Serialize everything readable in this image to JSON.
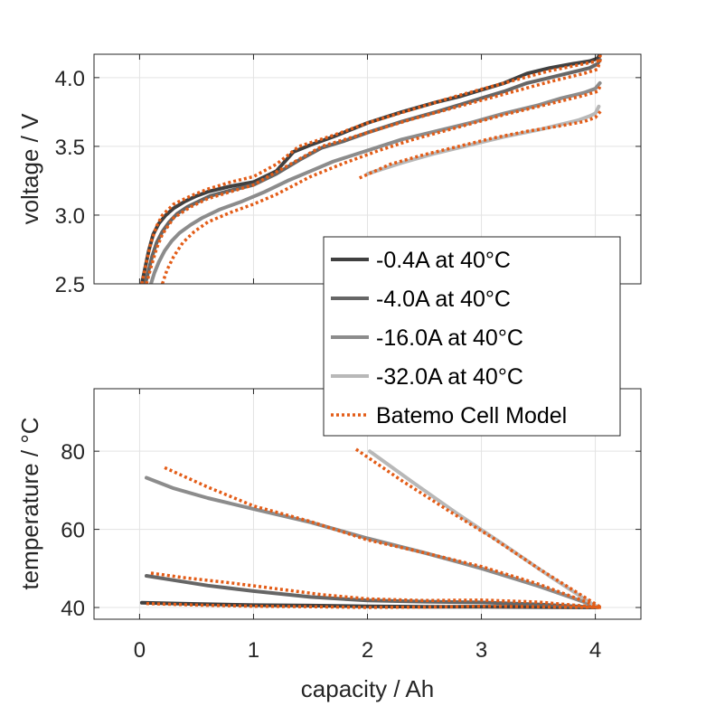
{
  "chart_data": [
    {
      "type": "line",
      "ylabel": "voltage / V",
      "xlabel": "",
      "xlim": [
        -0.4,
        4.4
      ],
      "ylim": [
        2.5,
        4.17
      ],
      "xticks": [
        0,
        1,
        2,
        3,
        4
      ],
      "yticks": [
        "2.5",
        "3.0",
        "3.5",
        "4.0"
      ],
      "grid": true,
      "series": [
        {
          "name": "-0.4A at 40°C",
          "color": "#404040",
          "style": "solid",
          "x": [
            0.02,
            0.05,
            0.08,
            0.12,
            0.17,
            0.23,
            0.3,
            0.4,
            0.5,
            0.6,
            0.8,
            1.0,
            1.2,
            1.35,
            1.5,
            1.7,
            2.0,
            2.3,
            2.6,
            2.8,
            3.0,
            3.2,
            3.4,
            3.6,
            3.8,
            3.95,
            4.02,
            4.04
          ],
          "y": [
            2.5,
            2.62,
            2.74,
            2.86,
            2.94,
            3.0,
            3.05,
            3.1,
            3.14,
            3.17,
            3.21,
            3.24,
            3.32,
            3.46,
            3.51,
            3.57,
            3.67,
            3.75,
            3.82,
            3.86,
            3.91,
            3.96,
            4.03,
            4.07,
            4.1,
            4.12,
            4.14,
            4.17
          ]
        },
        {
          "name": "-4.0A at 40°C",
          "color": "#666666",
          "style": "solid",
          "x": [
            0.05,
            0.08,
            0.11,
            0.15,
            0.2,
            0.26,
            0.33,
            0.42,
            0.52,
            0.62,
            0.8,
            1.0,
            1.2,
            1.4,
            1.6,
            1.8,
            2.0,
            2.3,
            2.6,
            2.8,
            3.0,
            3.2,
            3.4,
            3.6,
            3.8,
            3.95,
            4.02,
            4.04
          ],
          "y": [
            2.5,
            2.6,
            2.7,
            2.8,
            2.88,
            2.95,
            3.01,
            3.06,
            3.1,
            3.14,
            3.18,
            3.22,
            3.3,
            3.4,
            3.49,
            3.54,
            3.6,
            3.68,
            3.75,
            3.8,
            3.85,
            3.9,
            3.96,
            4.0,
            4.04,
            4.07,
            4.1,
            4.13
          ]
        },
        {
          "name": "-16.0A at 40°C",
          "color": "#8c8c8c",
          "style": "solid",
          "x": [
            0.1,
            0.13,
            0.17,
            0.22,
            0.28,
            0.35,
            0.45,
            0.55,
            0.7,
            0.9,
            1.1,
            1.3,
            1.5,
            1.7,
            2.0,
            2.3,
            2.6,
            2.9,
            3.2,
            3.5,
            3.7,
            3.9,
            4.0,
            4.04
          ],
          "y": [
            2.5,
            2.58,
            2.66,
            2.74,
            2.81,
            2.87,
            2.93,
            2.98,
            3.04,
            3.1,
            3.17,
            3.25,
            3.32,
            3.39,
            3.47,
            3.55,
            3.61,
            3.67,
            3.74,
            3.8,
            3.85,
            3.89,
            3.92,
            3.96
          ]
        },
        {
          "name": "-32.0A at 40°C",
          "color": "#b8b8b8",
          "style": "solid",
          "x": [
            2.0,
            2.3,
            2.6,
            2.9,
            3.2,
            3.5,
            3.7,
            3.85,
            3.95,
            4.0,
            4.03
          ],
          "y": [
            3.3,
            3.38,
            3.45,
            3.51,
            3.57,
            3.62,
            3.66,
            3.69,
            3.72,
            3.74,
            3.79
          ]
        },
        {
          "name": "Batemo Cell Model",
          "color": "#e35c17",
          "style": "dotted",
          "x": [
            0.02,
            0.06,
            0.1,
            0.15,
            0.2,
            0.3,
            0.45,
            0.6,
            0.8,
            1.0,
            1.2,
            1.4,
            1.7,
            2.0,
            2.4,
            2.8,
            3.2,
            3.6,
            3.9,
            4.02,
            4.05
          ],
          "y": [
            2.5,
            2.66,
            2.8,
            2.92,
            3.0,
            3.08,
            3.14,
            3.19,
            3.24,
            3.28,
            3.37,
            3.5,
            3.58,
            3.67,
            3.77,
            3.87,
            3.96,
            4.05,
            4.1,
            4.12,
            4.17
          ]
        },
        {
          "name": "",
          "color": "#e35c17",
          "style": "dotted",
          "x": [
            0.06,
            0.1,
            0.15,
            0.2,
            0.3,
            0.45,
            0.6,
            0.8,
            1.0,
            1.3,
            1.6,
            2.0,
            2.4,
            2.8,
            3.2,
            3.6,
            3.9,
            4.02,
            4.05
          ],
          "y": [
            2.5,
            2.62,
            2.76,
            2.86,
            2.98,
            3.06,
            3.12,
            3.17,
            3.22,
            3.36,
            3.5,
            3.6,
            3.7,
            3.79,
            3.88,
            3.97,
            4.03,
            4.06,
            4.15
          ]
        },
        {
          "name": "",
          "color": "#e35c17",
          "style": "dotted",
          "x": [
            0.2,
            0.24,
            0.3,
            0.38,
            0.48,
            0.6,
            0.8,
            1.0,
            1.2,
            1.5,
            1.8,
            2.1,
            2.4,
            2.8,
            3.2,
            3.6,
            3.9,
            4.02,
            4.05
          ],
          "y": [
            2.5,
            2.6,
            2.7,
            2.8,
            2.88,
            2.95,
            3.02,
            3.08,
            3.15,
            3.28,
            3.38,
            3.47,
            3.55,
            3.64,
            3.73,
            3.81,
            3.87,
            3.9,
            3.95
          ]
        },
        {
          "name": "",
          "color": "#e35c17",
          "style": "dotted",
          "x": [
            1.93,
            2.2,
            2.5,
            2.8,
            3.1,
            3.4,
            3.7,
            3.9,
            4.0,
            4.05
          ],
          "y": [
            3.27,
            3.37,
            3.44,
            3.5,
            3.56,
            3.61,
            3.65,
            3.68,
            3.71,
            3.76
          ]
        }
      ]
    },
    {
      "type": "line",
      "ylabel": "temperature / °C",
      "xlabel": "capacity / Ah",
      "xlim": [
        -0.4,
        4.4
      ],
      "ylim": [
        37,
        96
      ],
      "xticks": [
        "0",
        "1",
        "2",
        "3",
        "4"
      ],
      "yticks": [
        "40",
        "60",
        "80"
      ],
      "grid": true,
      "series": [
        {
          "name": "-0.4A at 40°C",
          "color": "#404040",
          "style": "solid",
          "x": [
            0.02,
            0.5,
            1.0,
            1.5,
            2.0,
            2.5,
            3.0,
            3.5,
            4.02
          ],
          "y": [
            41.2,
            40.9,
            40.6,
            40.5,
            40.3,
            40.2,
            40.2,
            40.1,
            40.0
          ]
        },
        {
          "name": "-4.0A at 40°C",
          "color": "#666666",
          "style": "solid",
          "x": [
            0.06,
            0.3,
            0.6,
            1.0,
            1.5,
            2.0,
            2.5,
            3.0,
            3.5,
            4.02
          ],
          "y": [
            48.1,
            47.0,
            45.6,
            44.2,
            42.7,
            41.8,
            41.5,
            41.3,
            40.8,
            40.0
          ]
        },
        {
          "name": "-16.0A at 40°C",
          "color": "#8c8c8c",
          "style": "solid",
          "x": [
            0.06,
            0.3,
            0.6,
            1.0,
            1.5,
            2.0,
            2.5,
            3.0,
            3.5,
            4.02
          ],
          "y": [
            73.2,
            70.5,
            68.0,
            65.2,
            61.8,
            57.7,
            54.0,
            50.0,
            45.5,
            40.2
          ]
        },
        {
          "name": "-32.0A at 40°C",
          "color": "#b8b8b8",
          "style": "solid",
          "x": [
            2.02,
            2.4,
            2.8,
            3.2,
            3.6,
            4.02
          ],
          "y": [
            80.0,
            72.0,
            63.8,
            56.0,
            48.0,
            40.0
          ]
        },
        {
          "name": "Batemo Cell Model",
          "color": "#e35c17",
          "style": "dotted",
          "x": [
            0.06,
            0.5,
            1.0,
            1.5,
            2.0,
            2.5,
            3.0,
            3.5,
            4.05
          ],
          "y": [
            41.0,
            40.6,
            40.3,
            40.2,
            40.0,
            40.1,
            40.3,
            40.2,
            40.0
          ]
        },
        {
          "name": "",
          "color": "#e35c17",
          "style": "dotted",
          "x": [
            0.1,
            0.4,
            0.8,
            1.2,
            1.6,
            2.0,
            2.5,
            3.0,
            3.5,
            4.05
          ],
          "y": [
            48.8,
            47.6,
            46.3,
            44.8,
            43.3,
            42.2,
            41.8,
            41.9,
            41.4,
            40.0
          ]
        },
        {
          "name": "",
          "color": "#e35c17",
          "style": "dotted",
          "x": [
            0.22,
            0.6,
            1.0,
            1.5,
            2.0,
            2.5,
            3.0,
            3.5,
            4.05
          ],
          "y": [
            75.8,
            70.8,
            66.0,
            62.0,
            57.3,
            54.0,
            50.5,
            46.0,
            40.0
          ]
        },
        {
          "name": "",
          "color": "#e35c17",
          "style": "dotted",
          "x": [
            1.9,
            2.3,
            2.7,
            3.1,
            3.5,
            4.05
          ],
          "y": [
            80.5,
            72.5,
            65.0,
            57.8,
            50.0,
            40.0
          ]
        }
      ]
    }
  ],
  "legend": [
    {
      "label": "-0.4A at 40°C",
      "color": "#404040",
      "style": "solid"
    },
    {
      "label": "-4.0A at 40°C",
      "color": "#666666",
      "style": "solid"
    },
    {
      "label": "-16.0A at 40°C",
      "color": "#8c8c8c",
      "style": "solid"
    },
    {
      "label": "-32.0A at 40°C",
      "color": "#b8b8b8",
      "style": "solid"
    },
    {
      "label": "Batemo Cell Model",
      "color": "#e35c17",
      "style": "dotted"
    }
  ]
}
